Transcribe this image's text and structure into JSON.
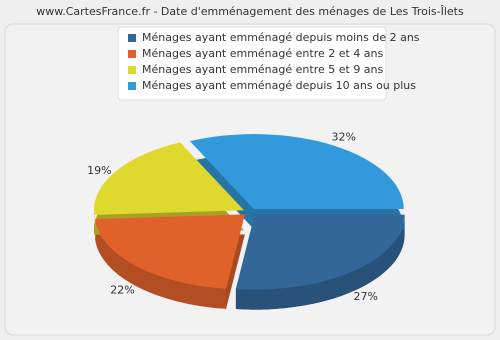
{
  "chart_data": {
    "type": "pie",
    "title": "www.CartesFrance.fr - Date d'emménagement des ménages de Les Trois-Îlets",
    "categories": [
      "Ménages ayant emménagé depuis moins de 2 ans",
      "Ménages ayant emménagé entre 2 et 4 ans",
      "Ménages ayant emménagé entre 5 et 9 ans",
      "Ménages ayant emménagé depuis 10 ans ou plus"
    ],
    "values": [
      27,
      22,
      19,
      32
    ],
    "value_labels": [
      "27%",
      "22%",
      "19%",
      "32%"
    ],
    "colors": [
      "#336699",
      "#e0622a",
      "#dfd82f",
      "#3399dd"
    ]
  }
}
